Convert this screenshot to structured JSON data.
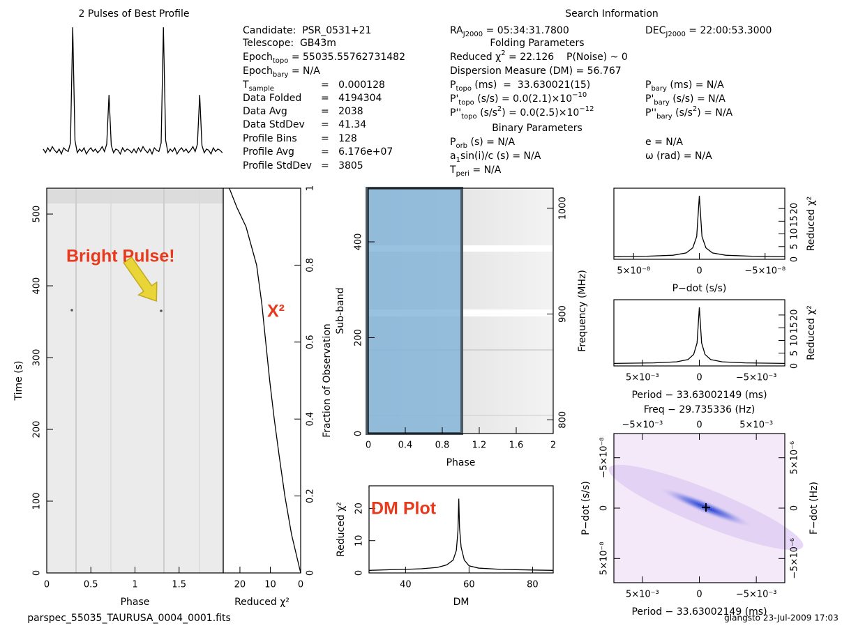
{
  "info": {
    "title": "Search Information",
    "items": [
      [
        {
          "t": "Candidate:  PSR_0531+21"
        }
      ],
      [
        {
          "t": "Telescope:  GB43m"
        }
      ],
      [
        {
          "t": "Epoch"
        },
        {
          "sub": "topo"
        },
        {
          "t": " = 55035.55762731482"
        }
      ],
      [
        {
          "t": "Epoch"
        },
        {
          "sub": "bary"
        },
        {
          "t": " = N/A"
        }
      ],
      [
        {
          "t": "T"
        },
        {
          "sub": "sample"
        }
      ],
      [
        {
          "t": "=   0.000128"
        }
      ],
      [
        {
          "t": "Data Folded"
        }
      ],
      [
        {
          "t": "=   4194304"
        }
      ],
      [
        {
          "t": "Data Avg"
        }
      ],
      [
        {
          "t": "=   2038"
        }
      ],
      [
        {
          "t": "Data StdDev"
        }
      ],
      [
        {
          "t": "=   41.34"
        }
      ],
      [
        {
          "t": "Profile Bins"
        }
      ],
      [
        {
          "t": "=   128"
        }
      ],
      [
        {
          "t": "Profile Avg"
        }
      ],
      [
        {
          "t": "=   6.176e+07"
        }
      ],
      [
        {
          "t": "Profile StdDev"
        }
      ],
      [
        {
          "t": "=   3805"
        }
      ],
      [
        {
          "t": "RA"
        },
        {
          "sub": "J2000"
        },
        {
          "t": " = 05:34:31.7800"
        }
      ],
      [
        {
          "t": "DEC"
        },
        {
          "sub": "J2000"
        },
        {
          "t": " = 22:00:53.3000"
        }
      ],
      [
        {
          "t": "Folding Parameters"
        }
      ],
      [
        {
          "t": "Reduced χ"
        },
        {
          "sup": "2"
        },
        {
          "t": " = 22.126    P(Noise) ~ 0"
        }
      ],
      [
        {
          "t": "Dispersion Measure (DM) = 56.767"
        }
      ],
      [
        {
          "t": "P"
        },
        {
          "sub": "topo"
        },
        {
          "t": " (ms)  =  33.630021(15)"
        }
      ],
      [
        {
          "t": "P"
        },
        {
          "sub": "bary"
        },
        {
          "t": " (ms) = N/A"
        }
      ],
      [
        {
          "t": "P'"
        },
        {
          "sub": "topo"
        },
        {
          "t": " (s/s) = 0.0(2.1)×10"
        },
        {
          "sup": "−10"
        }
      ],
      [
        {
          "t": "P'"
        },
        {
          "sub": "bary"
        },
        {
          "t": " (s/s) = N/A"
        }
      ],
      [
        {
          "t": "P''"
        },
        {
          "sub": "topo"
        },
        {
          "t": " (s/s"
        },
        {
          "sup": "2"
        },
        {
          "t": ") = 0.0(2.5)×10"
        },
        {
          "sup": "−12"
        }
      ],
      [
        {
          "t": "P''"
        },
        {
          "sub": "bary"
        },
        {
          "t": " (s/s"
        },
        {
          "sup": "2"
        },
        {
          "t": ") = N/A"
        }
      ],
      [
        {
          "t": "Binary Parameters"
        }
      ],
      [
        {
          "t": "P"
        },
        {
          "sub": "orb"
        },
        {
          "t": " (s) = N/A"
        }
      ],
      [
        {
          "t": "e = N/A"
        }
      ],
      [
        {
          "t": "a"
        },
        {
          "sub": "1"
        },
        {
          "t": "sin(i)/c (s) = N/A"
        }
      ],
      [
        {
          "t": "ω (rad) = N/A"
        }
      ],
      [
        {
          "t": "T"
        },
        {
          "sub": "peri"
        },
        {
          "t": " = N/A"
        }
      ]
    ]
  },
  "footer": {
    "file": "parspec_55035_TAURUSA_0004_0001.fits",
    "stamp": "glangsto 23-Jul-2009 17:03"
  },
  "chart_data": [
    {
      "type": "line",
      "title": "2 Pulses of Best Profile",
      "color": "#000000",
      "xlim": [
        0,
        2
      ],
      "x": [
        0,
        0.025,
        0.05,
        0.075,
        0.1,
        0.125,
        0.15,
        0.175,
        0.2,
        0.225,
        0.25,
        0.275,
        0.3,
        0.325,
        0.35,
        0.375,
        0.4,
        0.425,
        0.45,
        0.475,
        0.5,
        0.525,
        0.55,
        0.575,
        0.6,
        0.625,
        0.65,
        0.675,
        0.7,
        0.725,
        0.75,
        0.775,
        0.8,
        0.825,
        0.85,
        0.875,
        0.9,
        0.925,
        0.95,
        0.975,
        1,
        1.025,
        1.05,
        1.075,
        1.1,
        1.125,
        1.15,
        1.175,
        1.2,
        1.225,
        1.25,
        1.275,
        1.3,
        1.325,
        1.35,
        1.375,
        1.4,
        1.425,
        1.45,
        1.475,
        1.5,
        1.525,
        1.55,
        1.575,
        1.6,
        1.625,
        1.65,
        1.675,
        1.7,
        1.725,
        1.75,
        1.775,
        1.8,
        1.825,
        1.85,
        1.875,
        1.9,
        1.925,
        1.95,
        1.975
      ],
      "values": [
        1,
        -2,
        2,
        -1,
        3,
        0,
        -2,
        1,
        -3,
        2,
        0,
        -1,
        6,
        100,
        8,
        -2,
        1,
        -1,
        2,
        -3,
        0,
        2,
        -1,
        1,
        -2,
        0,
        3,
        -1,
        5,
        45,
        4,
        -2,
        1,
        0,
        -3,
        2,
        -1,
        1,
        0,
        -2,
        1,
        -2,
        2,
        -1,
        3,
        0,
        -2,
        1,
        -3,
        2,
        0,
        -1,
        6,
        100,
        8,
        -2,
        1,
        -1,
        2,
        -3,
        0,
        2,
        -1,
        1,
        -2,
        0,
        3,
        -1,
        5,
        45,
        4,
        -2,
        1,
        0,
        -3,
        2,
        -1,
        1,
        0,
        -2
      ]
    },
    {
      "type": "heatmap",
      "xlabel": "Phase",
      "ylabel": "Time (s)",
      "annotation": "Bright Pulse!",
      "xlim": [
        0,
        2
      ],
      "xticks": [
        0,
        0.5,
        1,
        1.5
      ],
      "ylim": [
        0,
        536
      ],
      "yticks": [
        0,
        100,
        200,
        300,
        400,
        500
      ]
    },
    {
      "type": "line",
      "xlabel": "Reduced χ²",
      "ylabel": "Fraction of Observation",
      "annotation": "X²",
      "color": "#000000",
      "xlim": [
        25.5,
        0
      ],
      "xticks": [
        20,
        10,
        0
      ],
      "ylim": [
        0,
        1
      ],
      "yticks": [
        0,
        0.2,
        0.4,
        0.6,
        0.8,
        1
      ],
      "x": [
        0,
        1.5,
        3,
        5.2,
        7,
        8.7,
        10.2,
        11.5,
        12.8,
        14.5,
        18,
        21,
        23.5
      ],
      "values": [
        0,
        0.05,
        0.1,
        0.2,
        0.3,
        0.4,
        0.5,
        0.6,
        0.7,
        0.8,
        0.9,
        0.95,
        1
      ]
    },
    {
      "type": "heatmap",
      "xlabel": "Phase",
      "ylabel": "Sub-band",
      "y2label": "Frequency (MHz)",
      "xlim": [
        0,
        2
      ],
      "xticks": [
        0,
        0.4,
        0.8,
        1.2,
        1.6,
        2
      ],
      "ylim": [
        0,
        512
      ],
      "yticks": [
        0,
        200,
        400
      ],
      "y2lim": [
        787,
        1019
      ],
      "y2ticks": [
        800,
        900,
        1000
      ]
    },
    {
      "type": "line",
      "xlabel": "DM",
      "ylabel": "Reduced χ²",
      "annotation": "DM Plot",
      "color": "#000000",
      "xlim": [
        28.5,
        86.5
      ],
      "xticks": [
        40,
        60,
        80
      ],
      "ylim": [
        0,
        27
      ],
      "yticks": [
        0,
        10,
        20
      ],
      "x": [
        28.5,
        35,
        40,
        45,
        50,
        53,
        55,
        56,
        56.5,
        56.767,
        57,
        57.5,
        58.5,
        60,
        63,
        70,
        80,
        86.5
      ],
      "values": [
        0.8,
        1,
        1.1,
        1.3,
        1.7,
        2.5,
        4,
        7,
        13,
        23,
        14,
        8,
        4,
        2.2,
        1.5,
        1.1,
        0.9,
        0.8
      ]
    },
    {
      "type": "line",
      "xlabel": "P−dot (s/s)",
      "ylabel": "Reduced χ²",
      "color": "#000000",
      "xlim": [
        6.5e-08,
        -6.5e-08
      ],
      "xticks": [
        {
          "value": 5e-08,
          "label": "5×10⁻⁸"
        },
        0,
        {
          "value": -5e-08,
          "label": "−5×10⁻⁸"
        }
      ],
      "ylim": [
        0,
        28
      ],
      "yticks": [
        0,
        5,
        10,
        15,
        20
      ],
      "x": [
        6.5e-08,
        4e-08,
        2e-08,
        1e-08,
        5e-09,
        2e-09,
        0,
        -2e-09,
        -5e-09,
        -1e-08,
        -2e-08,
        -4e-08,
        -6.5e-08
      ],
      "values": [
        1,
        1.2,
        1.6,
        2.5,
        4.5,
        9,
        25,
        9,
        4.5,
        2.5,
        1.6,
        1.2,
        1
      ]
    },
    {
      "type": "line",
      "xlabel": "Period − 33.63002149 (ms)",
      "ylabel": "Reduced χ²",
      "color": "#000000",
      "xlim": [
        0.0075,
        -0.0075
      ],
      "xticks": [
        {
          "value": 0.005,
          "label": "5×10⁻³"
        },
        0,
        {
          "value": -0.005,
          "label": "−5×10⁻³"
        }
      ],
      "ylim": [
        0,
        26
      ],
      "yticks": [
        0,
        5,
        10,
        15,
        20
      ],
      "x": [
        0.0075,
        0.004,
        0.002,
        0.001,
        0.0005,
        0.0002,
        0,
        -0.0002,
        -0.0005,
        -0.001,
        -0.002,
        -0.004,
        -0.0075
      ],
      "values": [
        1,
        1.2,
        1.6,
        2.5,
        4.5,
        9,
        23,
        9,
        4.5,
        2.5,
        1.6,
        1.2,
        1
      ]
    },
    {
      "type": "heatmap",
      "xlabel": "Period − 33.63002149 (ms)",
      "x2label": "Freq − 29.735336 (Hz)",
      "ylabel": "P−dot (s/s)",
      "y2label": "F−dot (Hz)",
      "xlim": [
        0.0075,
        -0.0075
      ],
      "xticks": [
        {
          "value": 0.005,
          "label": "5×10⁻³"
        },
        0,
        {
          "value": -0.005,
          "label": "−5×10⁻³"
        }
      ],
      "x2lim": [
        -0.0075,
        0.0075
      ],
      "x2ticks": [
        {
          "value": -0.005,
          "label": "−5×10⁻³"
        },
        0,
        {
          "value": 0.005,
          "label": "5×10⁻³"
        }
      ],
      "ylim": [
        7.4e-08,
        -7.4e-08
      ],
      "yticks": [
        {
          "value": -5e-08,
          "label": "−5×10⁻⁸"
        },
        0,
        {
          "value": 5e-08,
          "label": "5×10⁻⁸"
        }
      ],
      "y2lim": [
        -7.4e-06,
        7.4e-06
      ],
      "y2ticks": [
        {
          "value": 5e-06,
          "label": "5×10⁻⁶"
        },
        0,
        {
          "value": -5e-06,
          "label": "−5×10⁻⁶"
        }
      ]
    }
  ]
}
